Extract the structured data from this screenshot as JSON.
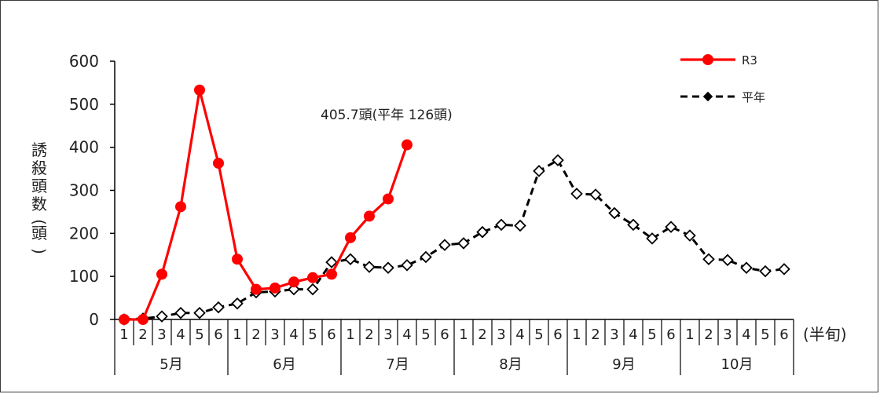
{
  "chart_data": {
    "type": "line",
    "ylim": [
      0,
      600
    ],
    "yticks": [
      0,
      100,
      200,
      300,
      400,
      500,
      600
    ],
    "ylabel": "誘殺頭数(頭)",
    "x_unit_label": "(半旬)",
    "categories": [
      "1",
      "2",
      "3",
      "4",
      "5",
      "6",
      "1",
      "2",
      "3",
      "4",
      "5",
      "6",
      "1",
      "2",
      "3",
      "4",
      "5",
      "6",
      "1",
      "2",
      "3",
      "4",
      "5",
      "6",
      "1",
      "2",
      "3",
      "4",
      "5",
      "6",
      "1",
      "2",
      "3",
      "4",
      "5",
      "6"
    ],
    "months": [
      "5月",
      "6月",
      "7月",
      "8月",
      "9月",
      "10月"
    ],
    "annotation": "405.7頭(平年 126頭)",
    "legend_placement": "top-right",
    "series": [
      {
        "name": "R3",
        "color": "#ff0000",
        "style": "solid-circle",
        "values": [
          0,
          0,
          105,
          262,
          533,
          363,
          140,
          70,
          73,
          87,
          97,
          105,
          190,
          240,
          280,
          405.7,
          null,
          null,
          null,
          null,
          null,
          null,
          null,
          null,
          null,
          null,
          null,
          null,
          null,
          null,
          null,
          null,
          null,
          null,
          null,
          null
        ]
      },
      {
        "name": "平年",
        "color": "#000000",
        "style": "dashed-diamond",
        "values": [
          0,
          2,
          7,
          15,
          15,
          28,
          37,
          63,
          65,
          70,
          70,
          133,
          140,
          122,
          120,
          126,
          145,
          173,
          177,
          203,
          220,
          218,
          345,
          370,
          292,
          290,
          247,
          220,
          188,
          215,
          195,
          140,
          138,
          120,
          112,
          117
        ]
      }
    ]
  }
}
